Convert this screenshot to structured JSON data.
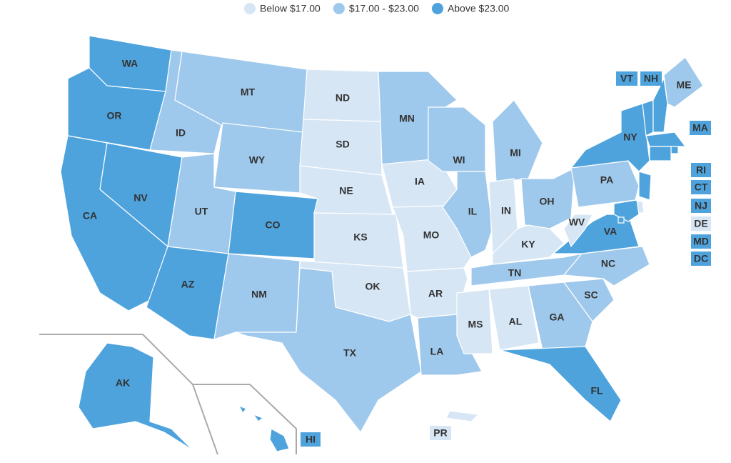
{
  "legend": [
    {
      "label": "Below $17.00",
      "color": "#d6e6f5"
    },
    {
      "label": "$17.00 - $23.00",
      "color": "#9fc9ec"
    },
    {
      "label": "Above $23.00",
      "color": "#4ea3dd"
    }
  ],
  "states": [
    {
      "label": "WA",
      "color": "#4ea3dd"
    },
    {
      "label": "OR",
      "color": "#4ea3dd"
    },
    {
      "label": "CA",
      "color": "#4ea3dd"
    },
    {
      "label": "NV",
      "color": "#4ea3dd"
    },
    {
      "label": "ID",
      "color": "#9fc9ec"
    },
    {
      "label": "MT",
      "color": "#9fc9ec"
    },
    {
      "label": "WY",
      "color": "#9fc9ec"
    },
    {
      "label": "UT",
      "color": "#9fc9ec"
    },
    {
      "label": "CO",
      "color": "#4ea3dd"
    },
    {
      "label": "AZ",
      "color": "#4ea3dd"
    },
    {
      "label": "NM",
      "color": "#9fc9ec"
    },
    {
      "label": "ND",
      "color": "#d6e6f5"
    },
    {
      "label": "SD",
      "color": "#d6e6f5"
    },
    {
      "label": "NE",
      "color": "#d6e6f5"
    },
    {
      "label": "KS",
      "color": "#d6e6f5"
    },
    {
      "label": "OK",
      "color": "#d6e6f5"
    },
    {
      "label": "TX",
      "color": "#9fc9ec"
    },
    {
      "label": "MN",
      "color": "#9fc9ec"
    },
    {
      "label": "IA",
      "color": "#d6e6f5"
    },
    {
      "label": "MO",
      "color": "#d6e6f5"
    },
    {
      "label": "AR",
      "color": "#d6e6f5"
    },
    {
      "label": "LA",
      "color": "#9fc9ec"
    },
    {
      "label": "WI",
      "color": "#9fc9ec"
    },
    {
      "label": "IL",
      "color": "#9fc9ec"
    },
    {
      "label": "MI",
      "color": "#9fc9ec"
    },
    {
      "label": "IN",
      "color": "#d6e6f5"
    },
    {
      "label": "OH",
      "color": "#9fc9ec"
    },
    {
      "label": "KY",
      "color": "#d6e6f5"
    },
    {
      "label": "TN",
      "color": "#9fc9ec"
    },
    {
      "label": "MS",
      "color": "#d6e6f5"
    },
    {
      "label": "AL",
      "color": "#d6e6f5"
    },
    {
      "label": "GA",
      "color": "#9fc9ec"
    },
    {
      "label": "FL",
      "color": "#4ea3dd"
    },
    {
      "label": "SC",
      "color": "#9fc9ec"
    },
    {
      "label": "NC",
      "color": "#9fc9ec"
    },
    {
      "label": "VA",
      "color": "#4ea3dd"
    },
    {
      "label": "WV",
      "color": "#d6e6f5"
    },
    {
      "label": "PA",
      "color": "#9fc9ec"
    },
    {
      "label": "NY",
      "color": "#4ea3dd"
    },
    {
      "label": "ME",
      "color": "#9fc9ec"
    },
    {
      "label": "VT",
      "color": "#4ea3dd"
    },
    {
      "label": "NH",
      "color": "#4ea3dd"
    },
    {
      "label": "MA",
      "color": "#4ea3dd"
    },
    {
      "label": "RI",
      "color": "#4ea3dd"
    },
    {
      "label": "CT",
      "color": "#4ea3dd"
    },
    {
      "label": "NJ",
      "color": "#4ea3dd"
    },
    {
      "label": "DE",
      "color": "#d6e6f5"
    },
    {
      "label": "MD",
      "color": "#4ea3dd"
    },
    {
      "label": "DC",
      "color": "#4ea3dd"
    },
    {
      "label": "AK",
      "color": "#4ea3dd"
    },
    {
      "label": "HI",
      "color": "#4ea3dd"
    },
    {
      "label": "PR",
      "color": "#d6e6f5"
    }
  ]
}
